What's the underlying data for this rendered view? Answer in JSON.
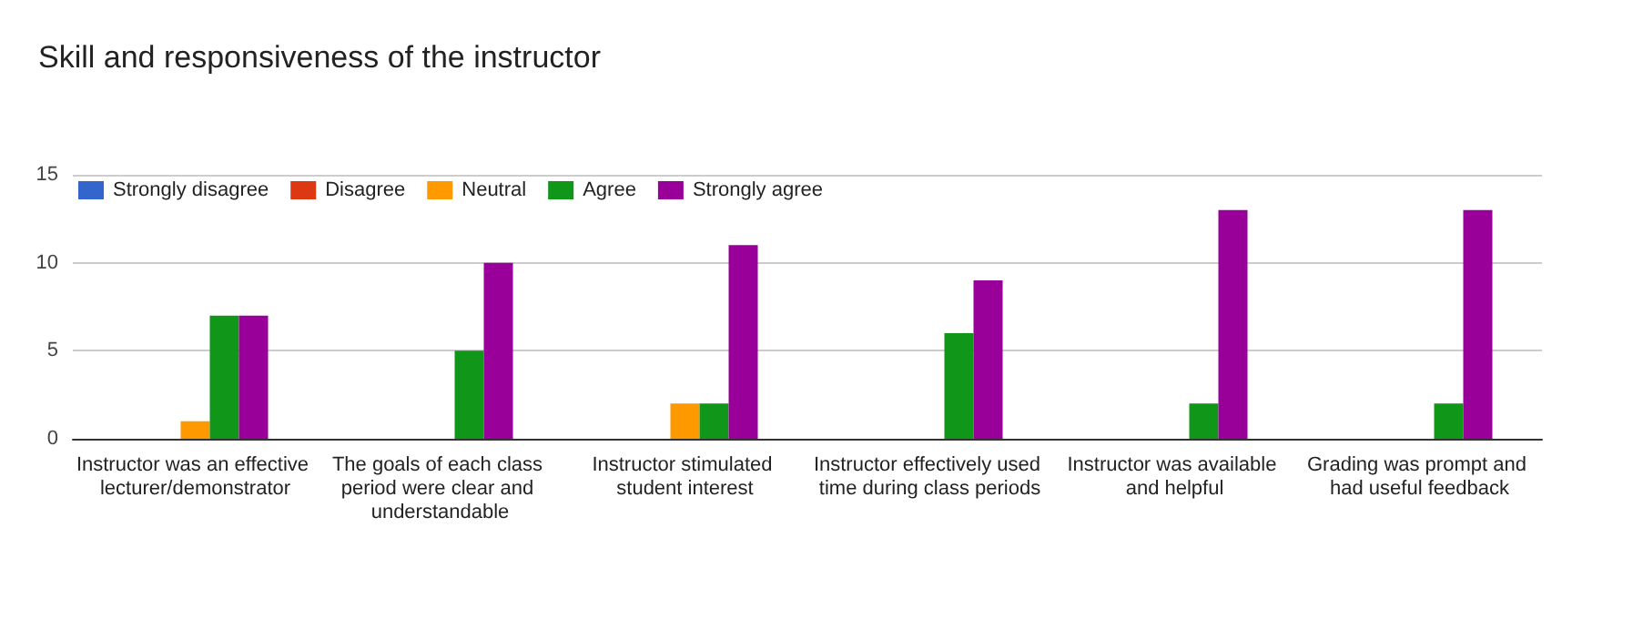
{
  "chart_data": {
    "type": "bar",
    "title": "Skill and responsiveness of the instructor",
    "categories": [
      "Instructor was an effective lecturer/demonstrator",
      "The goals of each class period were clear and understandable",
      "Instructor stimulated student interest",
      "Instructor effectively used time during class periods",
      "Instructor was available and helpful",
      "Grading was prompt and had useful feedback"
    ],
    "series": [
      {
        "name": "Strongly disagree",
        "color": "#3366cc",
        "values": [
          0,
          0,
          0,
          0,
          0,
          0
        ]
      },
      {
        "name": "Disagree",
        "color": "#dc3912",
        "values": [
          0,
          0,
          0,
          0,
          0,
          0
        ]
      },
      {
        "name": "Neutral",
        "color": "#ff9900",
        "values": [
          1,
          0,
          2,
          0,
          0,
          0
        ]
      },
      {
        "name": "Agree",
        "color": "#109618",
        "values": [
          7,
          5,
          2,
          6,
          2,
          2
        ]
      },
      {
        "name": "Strongly agree",
        "color": "#990099",
        "values": [
          7,
          10,
          11,
          9,
          13,
          13
        ]
      }
    ],
    "ylim": [
      0,
      15
    ],
    "yticks": [
      0,
      5,
      10,
      15
    ],
    "grid": "y",
    "legend": "top left"
  }
}
